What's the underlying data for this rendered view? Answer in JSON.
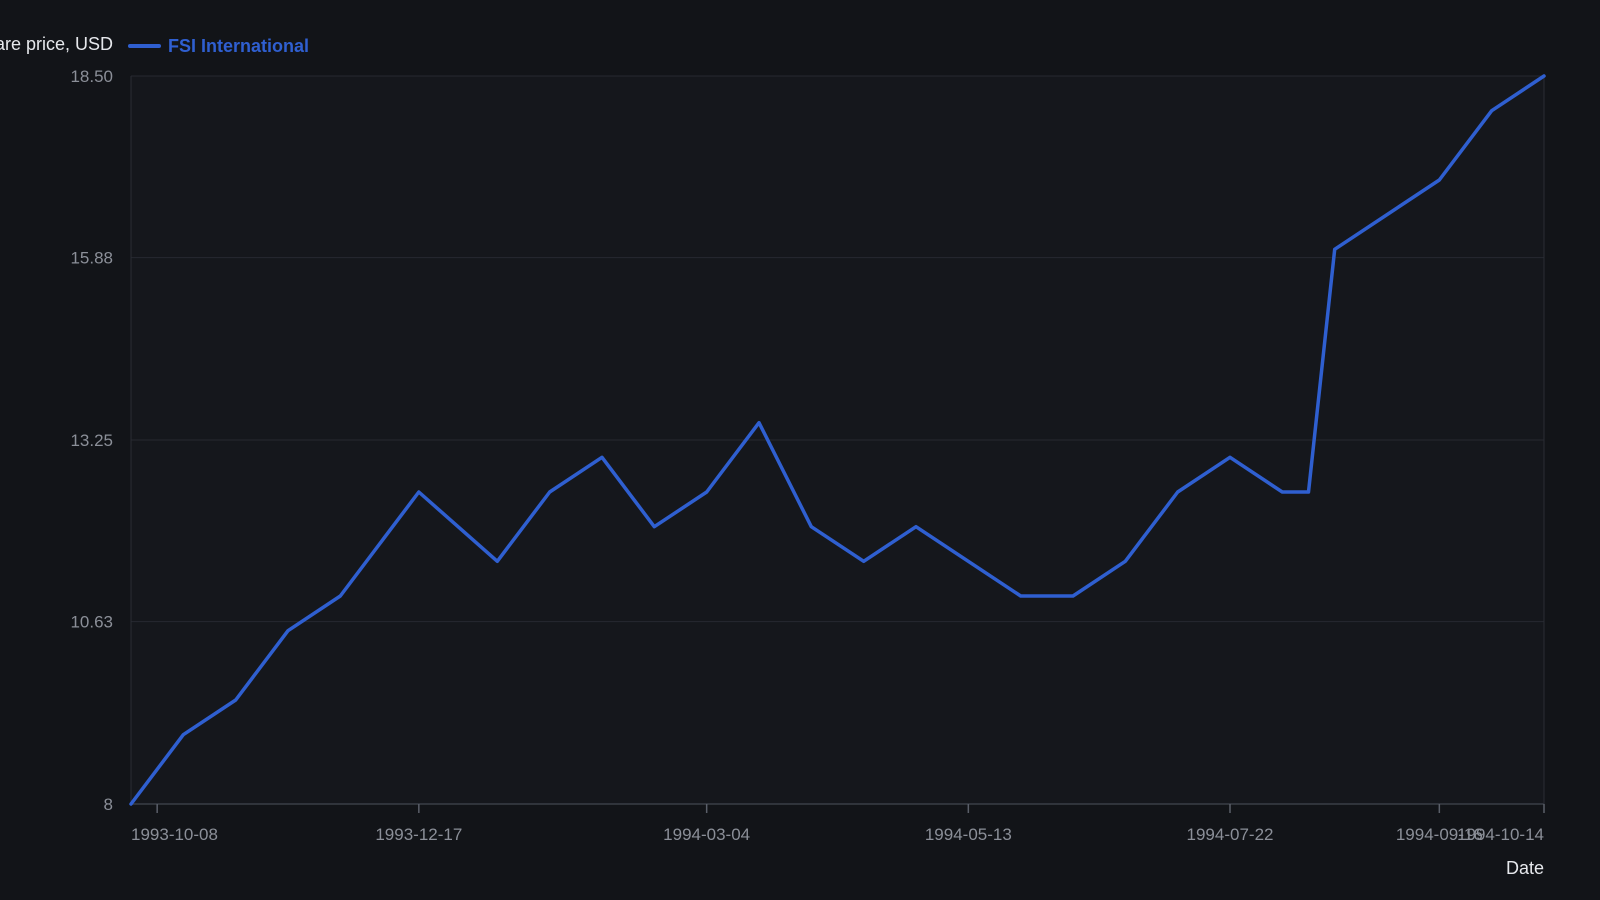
{
  "chart_data": {
    "type": "line",
    "title": "",
    "xlabel": "Date",
    "ylabel": "Share price, USD",
    "ylim": [
      8,
      18.5
    ],
    "y_ticks": [
      "8",
      "10.63",
      "13.25",
      "15.88",
      "18.50"
    ],
    "x_range": [
      "1993-10-01",
      "1994-10-14"
    ],
    "x_ticks": [
      "1993-10-08",
      "1993-12-17",
      "1994-03-04",
      "1994-05-13",
      "1994-07-22",
      "1994-09-16",
      "1994-10-14"
    ],
    "grid": true,
    "legend_position": "top-left",
    "series": [
      {
        "name": "FSI International",
        "color": "#2f5fd0",
        "points": [
          [
            "1993-10-01",
            8.0
          ],
          [
            "1993-10-15",
            9.0
          ],
          [
            "1993-10-29",
            9.5
          ],
          [
            "1993-11-12",
            10.5
          ],
          [
            "1993-11-26",
            11.0
          ],
          [
            "1993-12-17",
            12.5
          ],
          [
            "1994-01-07",
            11.5
          ],
          [
            "1994-01-21",
            12.5
          ],
          [
            "1994-02-04",
            13.0
          ],
          [
            "1994-02-18",
            12.0
          ],
          [
            "1994-03-04",
            12.5
          ],
          [
            "1994-03-18",
            13.5
          ],
          [
            "1994-04-01",
            12.0
          ],
          [
            "1994-04-15",
            11.5
          ],
          [
            "1994-04-29",
            12.0
          ],
          [
            "1994-05-13",
            11.5
          ],
          [
            "1994-05-27",
            11.0
          ],
          [
            "1994-06-10",
            11.0
          ],
          [
            "1994-06-24",
            11.5
          ],
          [
            "1994-07-08",
            12.5
          ],
          [
            "1994-07-22",
            13.0
          ],
          [
            "1994-08-05",
            12.5
          ],
          [
            "1994-08-12",
            12.5
          ],
          [
            "1994-08-19",
            16.0
          ],
          [
            "1994-09-16",
            17.0
          ],
          [
            "1994-09-30",
            18.0
          ],
          [
            "1994-10-14",
            18.5
          ]
        ]
      }
    ]
  }
}
